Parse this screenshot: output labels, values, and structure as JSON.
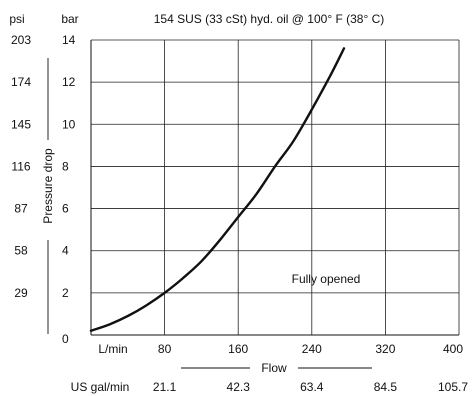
{
  "chart_data": {
    "type": "line",
    "title": "154 SUS (33 cSt) hyd. oil @ 100° F (38° C)",
    "xlabel": "Flow",
    "ylabel": "Pressure drop",
    "y_unit_left": "psi",
    "y_unit_right": "bar",
    "x_unit_primary": "L/min",
    "x_unit_secondary": "US gal/min",
    "xlim": [
      0,
      400
    ],
    "ylim": [
      0,
      14
    ],
    "x_ticks": [
      80,
      160,
      240,
      320,
      400
    ],
    "x_tick_labels": [
      "80",
      "160",
      "240",
      "320",
      "400"
    ],
    "x_secondary_tick_labels": [
      "21.1",
      "42.3",
      "63.4",
      "84.5",
      "105.7"
    ],
    "y_ticks": [
      0,
      2,
      4,
      6,
      8,
      10,
      12,
      14
    ],
    "y_tick_labels": [
      "0",
      "2",
      "4",
      "6",
      "8",
      "10",
      "12",
      "14"
    ],
    "y_secondary_tick_values": [
      2,
      4,
      6,
      8,
      10,
      12,
      14
    ],
    "y_secondary_tick_labels": [
      "29",
      "58",
      "87",
      "116",
      "145",
      "174",
      "203"
    ],
    "grid": true,
    "annotation": "Fully opened",
    "series": [
      {
        "color": "#111111",
        "x": [
          0,
          20,
          40,
          60,
          80,
          100,
          120,
          140,
          160,
          180,
          200,
          220,
          240,
          260,
          275
        ],
        "y": [
          0.2,
          0.5,
          0.9,
          1.4,
          2.0,
          2.7,
          3.5,
          4.5,
          5.6,
          6.7,
          8.0,
          9.2,
          10.7,
          12.3,
          13.6
        ]
      }
    ]
  }
}
